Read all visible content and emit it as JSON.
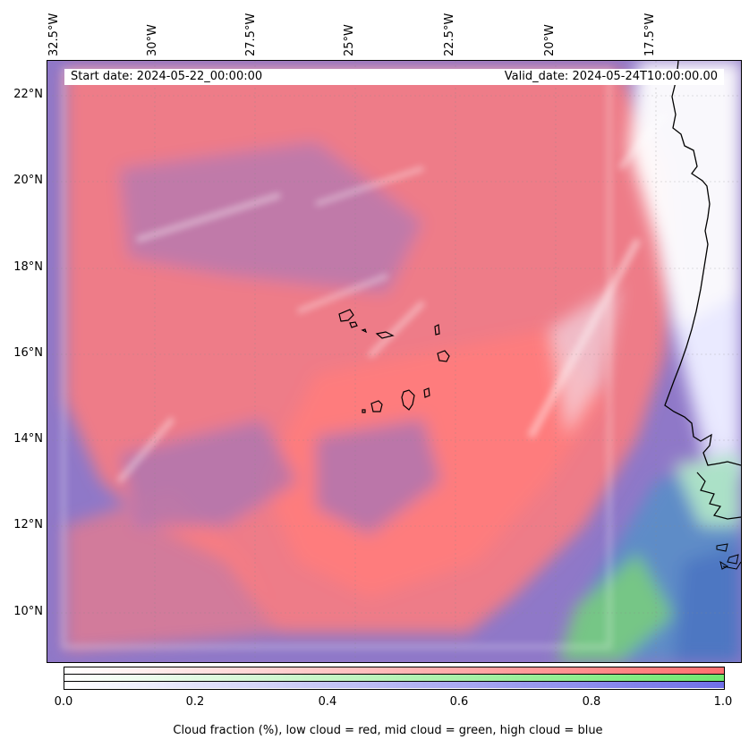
{
  "map": {
    "start_date_label": "Start date: 2024-05-22_00:00:00",
    "valid_date_label": "Valid_date: 2024-05-24T10:00:00.00",
    "lon_ticks": [
      "32.5°W",
      "30°W",
      "27.5°W",
      "25°W",
      "22.5°W",
      "20°W",
      "17.5°W"
    ],
    "lat_ticks": [
      "22°N",
      "20°N",
      "18°N",
      "16°N",
      "14°N",
      "12°N",
      "10°N"
    ],
    "colors": {
      "low_cloud": "#ff7a7a",
      "mid_cloud": "#7ae87a",
      "high_cloud": "#7a7af0",
      "clear": "#ffffff"
    }
  },
  "colorbar": {
    "ticks": [
      "0.0",
      "0.2",
      "0.4",
      "0.6",
      "0.8",
      "1.0"
    ],
    "label": "Cloud fraction (%), low cloud = red, mid cloud = green, high cloud = blue"
  }
}
